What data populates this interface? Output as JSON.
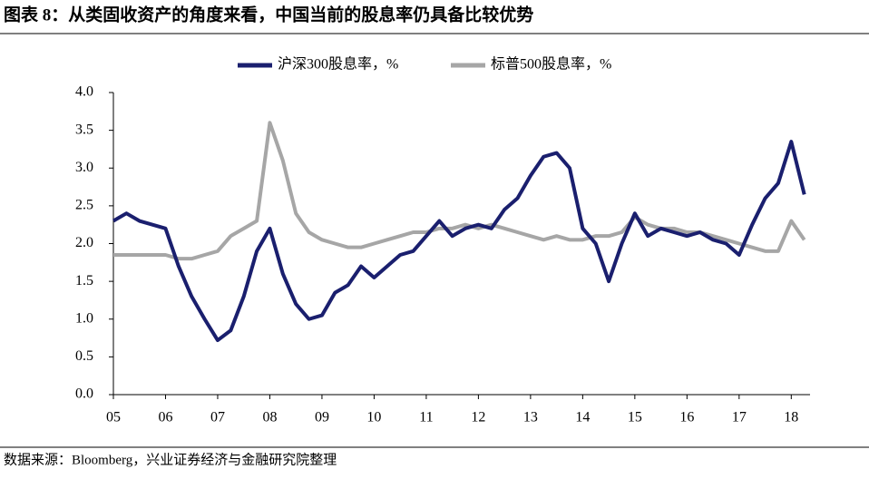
{
  "title": "图表 8：从类固收资产的角度来看，中国当前的股息率仍具备比较优势",
  "source": "数据来源：Bloomberg，兴业证券经济与金融研究院整理",
  "chart_data": {
    "type": "line",
    "x": [
      5,
      5.25,
      5.5,
      5.75,
      6,
      6.25,
      6.5,
      6.75,
      7,
      7.25,
      7.5,
      7.75,
      8,
      8.25,
      8.5,
      8.75,
      9,
      9.25,
      9.5,
      9.75,
      10,
      10.25,
      10.5,
      10.75,
      11,
      11.25,
      11.5,
      11.75,
      12,
      12.25,
      12.5,
      12.75,
      13,
      13.25,
      13.5,
      13.75,
      14,
      14.25,
      14.5,
      14.75,
      15,
      15.25,
      15.5,
      15.75,
      16,
      16.25,
      16.5,
      16.75,
      17,
      17.25,
      17.5,
      17.75,
      18,
      18.25
    ],
    "series": [
      {
        "name": "沪深300股息率，%",
        "color": "#1a1f6e",
        "values": [
          2.3,
          2.4,
          2.3,
          2.25,
          2.2,
          1.7,
          1.3,
          1.0,
          0.72,
          0.85,
          1.3,
          1.9,
          2.2,
          1.6,
          1.2,
          1.0,
          1.05,
          1.35,
          1.45,
          1.7,
          1.55,
          1.7,
          1.85,
          1.9,
          2.1,
          2.3,
          2.1,
          2.2,
          2.25,
          2.2,
          2.45,
          2.6,
          2.9,
          3.15,
          3.2,
          3.0,
          2.2,
          2.0,
          1.5,
          2.0,
          2.4,
          2.1,
          2.2,
          2.15,
          2.1,
          2.15,
          2.05,
          2.0,
          1.85,
          2.25,
          2.6,
          2.8,
          3.35,
          2.65
        ]
      },
      {
        "name": "标普500股息率，%",
        "color": "#a6a6a6",
        "values": [
          1.85,
          1.85,
          1.85,
          1.85,
          1.85,
          1.8,
          1.8,
          1.85,
          1.9,
          2.1,
          2.2,
          2.3,
          3.6,
          3.1,
          2.4,
          2.15,
          2.05,
          2.0,
          1.95,
          1.95,
          2.0,
          2.05,
          2.1,
          2.15,
          2.15,
          2.2,
          2.2,
          2.25,
          2.2,
          2.25,
          2.2,
          2.15,
          2.1,
          2.05,
          2.1,
          2.05,
          2.05,
          2.1,
          2.1,
          2.15,
          2.35,
          2.25,
          2.2,
          2.2,
          2.15,
          2.15,
          2.1,
          2.05,
          2.0,
          1.95,
          1.9,
          1.9,
          2.3,
          2.05
        ]
      }
    ],
    "xlim": [
      5,
      18.36
    ],
    "xticks": [
      {
        "value": 5,
        "label": "05"
      },
      {
        "value": 6,
        "label": "06"
      },
      {
        "value": 7,
        "label": "07"
      },
      {
        "value": 8,
        "label": "08"
      },
      {
        "value": 9,
        "label": "09"
      },
      {
        "value": 10,
        "label": "10"
      },
      {
        "value": 11,
        "label": "11"
      },
      {
        "value": 12,
        "label": "12"
      },
      {
        "value": 13,
        "label": "13"
      },
      {
        "value": 14,
        "label": "14"
      },
      {
        "value": 15,
        "label": "15"
      },
      {
        "value": 16,
        "label": "16"
      },
      {
        "value": 17,
        "label": "17"
      },
      {
        "value": 18,
        "label": "18"
      }
    ],
    "ylim": [
      0,
      4
    ],
    "yticks": [
      {
        "value": 0,
        "label": "0.0"
      },
      0.5,
      {
        "value": 1,
        "label": "1.0"
      },
      1.5,
      {
        "value": 2,
        "label": "2.0"
      },
      2.5,
      {
        "value": 3,
        "label": "3.0"
      },
      3.5,
      {
        "value": 4,
        "label": "4.0"
      }
    ],
    "grid": false
  }
}
